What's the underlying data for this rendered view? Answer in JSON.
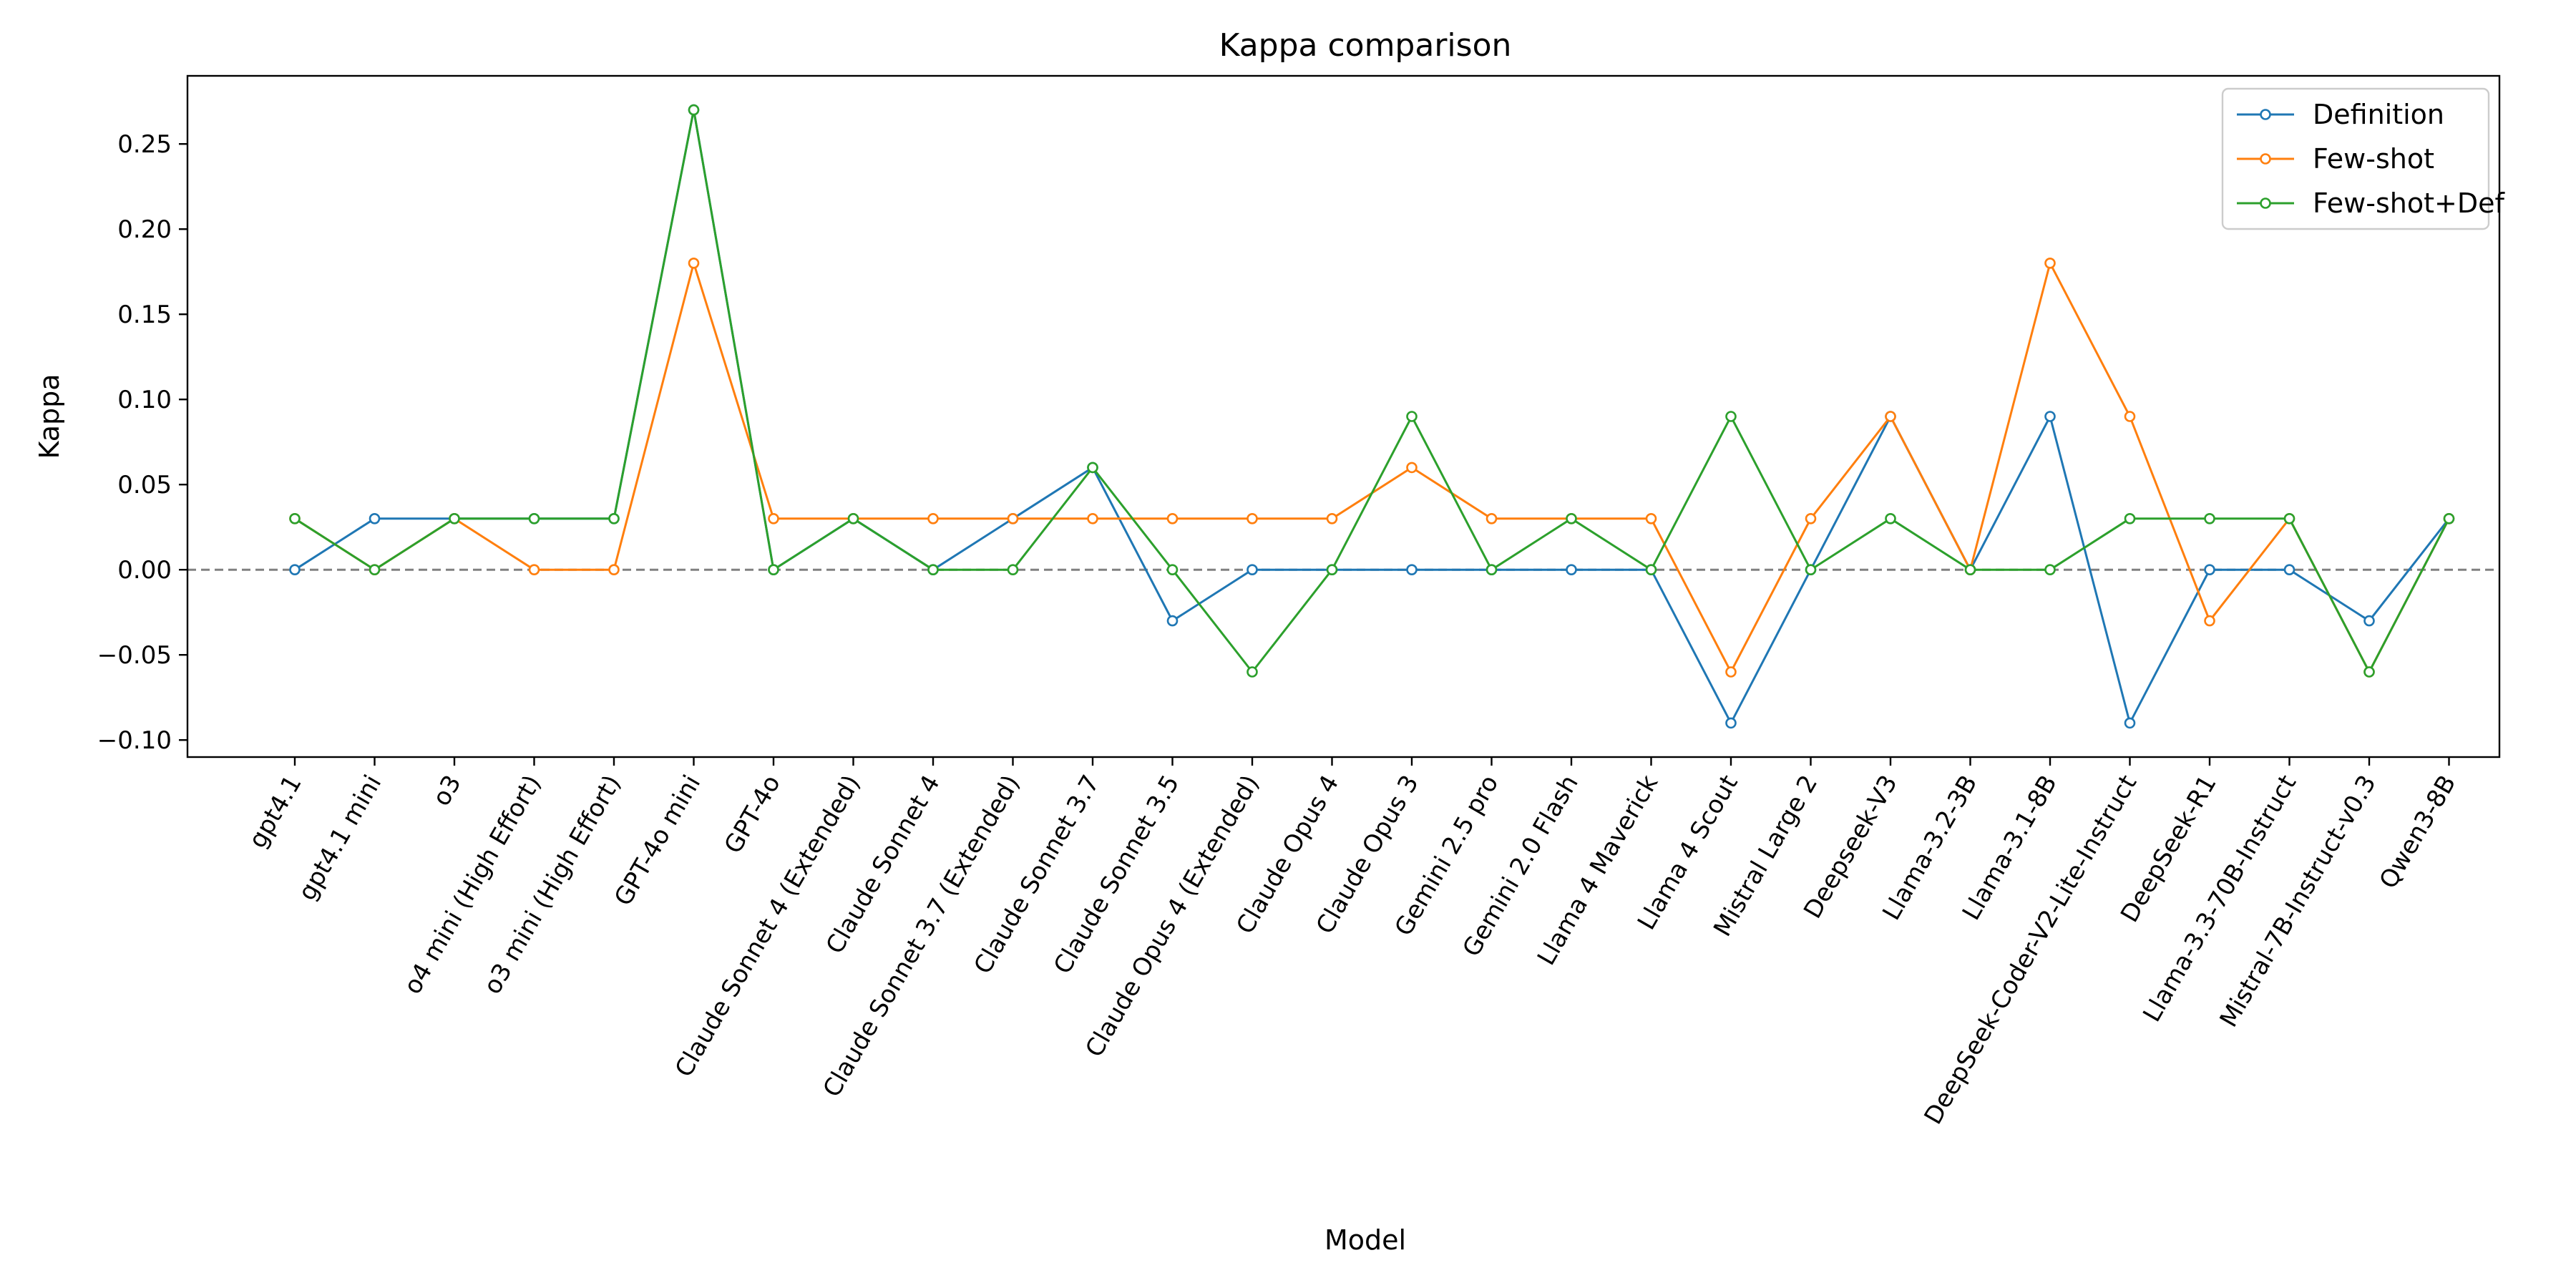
{
  "chart_data": {
    "type": "line",
    "title": "Kappa comparison",
    "xlabel": "Model",
    "ylabel": "Kappa",
    "ylim": [
      -0.11,
      0.29
    ],
    "yticks": [
      -0.1,
      -0.05,
      0.0,
      0.05,
      0.1,
      0.15,
      0.2,
      0.25
    ],
    "ytick_labels": [
      "−0.10",
      "−0.05",
      "0.00",
      "0.05",
      "0.10",
      "0.15",
      "0.20",
      "0.25"
    ],
    "reference_line": {
      "y": 0,
      "style": "dashed",
      "color": "#808080"
    },
    "legend": {
      "position": "top-right"
    },
    "grid": false,
    "categories": [
      "gpt4.1",
      "gpt4.1 mini",
      "o3",
      "o4 mini (High Effort)",
      "o3 mini (High Effort)",
      "GPT-4o mini",
      "GPT-4o",
      "Claude Sonnet 4 (Extended)",
      "Claude Sonnet 4",
      "Claude Sonnet 3.7 (Extended)",
      "Claude Sonnet 3.7",
      "Claude Sonnet 3.5",
      "Claude Opus 4 (Extended)",
      "Claude Opus 4",
      "Claude Opus 3",
      "Gemini 2.5 pro",
      "Gemini 2.0 Flash",
      "Llama 4 Maverick",
      "Llama 4 Scout",
      "Mistral Large 2",
      "Deepseek-V3",
      "Llama-3.2-3B",
      "Llama-3.1-8B",
      "DeepSeek-Coder-V2-Lite-Instruct",
      "DeepSeek-R1",
      "Llama-3.3-70B-Instruct",
      "Mistral-7B-Instruct-v0.3",
      "Qwen3-8B"
    ],
    "series": [
      {
        "name": "Definition",
        "color": "#1f77b4",
        "values": [
          0.0,
          0.03,
          0.03,
          0.03,
          0.03,
          0.27,
          0.0,
          0.03,
          0.0,
          0.03,
          0.06,
          -0.03,
          0.0,
          0.0,
          0.0,
          0.0,
          0.0,
          0.0,
          -0.09,
          0.0,
          0.09,
          0.0,
          0.09,
          -0.09,
          0.0,
          0.0,
          -0.03,
          0.03
        ]
      },
      {
        "name": "Few-shot",
        "color": "#ff7f0e",
        "values": [
          0.03,
          0.0,
          0.03,
          0.0,
          0.0,
          0.18,
          0.03,
          0.03,
          0.03,
          0.03,
          0.03,
          0.03,
          0.03,
          0.03,
          0.06,
          0.03,
          0.03,
          0.03,
          -0.06,
          0.03,
          0.09,
          0.0,
          0.18,
          0.09,
          -0.03,
          0.03,
          -0.06,
          0.03
        ]
      },
      {
        "name": "Few-shot+Def",
        "color": "#2ca02c",
        "values": [
          0.03,
          0.0,
          0.03,
          0.03,
          0.03,
          0.27,
          0.0,
          0.03,
          0.0,
          0.0,
          0.06,
          0.0,
          -0.06,
          0.0,
          0.09,
          0.0,
          0.03,
          0.0,
          0.09,
          0.0,
          0.03,
          0.0,
          0.0,
          0.03,
          0.03,
          0.03,
          -0.06,
          0.03
        ]
      }
    ]
  }
}
